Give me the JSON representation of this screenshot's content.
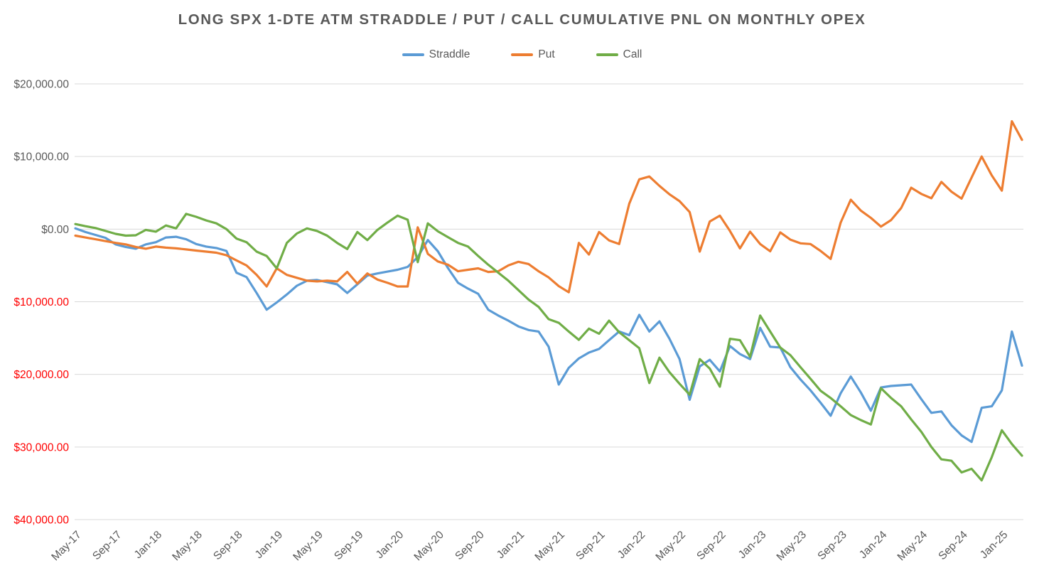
{
  "title": "LONG SPX 1-DTE ATM STRADDLE / PUT / CALL CUMULATIVE PNL ON MONTHLY OPEX",
  "colors": {
    "straddle": "#5B9BD5",
    "put": "#ED7D31",
    "call": "#70AD47",
    "grid": "#D9D9D9",
    "axis_text": "#595959",
    "negative_text": "#FF0000",
    "title_text": "#595959"
  },
  "chart_data": {
    "type": "line",
    "title": "LONG SPX 1-DTE ATM STRADDLE / PUT / CALL CUMULATIVE PNL ON MONTHLY OPEX",
    "legend_position": "top",
    "grid": true,
    "ylim": [
      -40000,
      20000
    ],
    "y_ticks": [
      {
        "value": 20000,
        "label": "$20,000.00",
        "negative": false
      },
      {
        "value": 10000,
        "label": "$10,000.00",
        "negative": false
      },
      {
        "value": 0,
        "label": "$0.00",
        "negative": false
      },
      {
        "value": -10000,
        "label": "$10,000.00",
        "negative": true
      },
      {
        "value": -20000,
        "label": "$20,000.00",
        "negative": true
      },
      {
        "value": -30000,
        "label": "$30,000.00",
        "negative": true
      },
      {
        "value": -40000,
        "label": "$40,000.00",
        "negative": true
      }
    ],
    "x_tick_labels": [
      "May-17",
      "Sep-17",
      "Jan-18",
      "May-18",
      "Sep-18",
      "Jan-19",
      "May-19",
      "Sep-19",
      "Jan-20",
      "May-20",
      "Sep-20",
      "Jan-21",
      "May-21",
      "Sep-21",
      "Jan-22",
      "May-22",
      "Sep-22",
      "Jan-23",
      "May-23",
      "Sep-23",
      "Jan-24",
      "May-24",
      "Sep-24",
      "Jan-25"
    ],
    "x_tick_every": 4,
    "x": [
      "May-17",
      "Jun-17",
      "Jul-17",
      "Aug-17",
      "Sep-17",
      "Oct-17",
      "Nov-17",
      "Dec-17",
      "Jan-18",
      "Feb-18",
      "Mar-18",
      "Apr-18",
      "May-18",
      "Jun-18",
      "Jul-18",
      "Aug-18",
      "Sep-18",
      "Oct-18",
      "Nov-18",
      "Dec-18",
      "Jan-19",
      "Feb-19",
      "Mar-19",
      "Apr-19",
      "May-19",
      "Jun-19",
      "Jul-19",
      "Aug-19",
      "Sep-19",
      "Oct-19",
      "Nov-19",
      "Dec-19",
      "Jan-20",
      "Feb-20",
      "Mar-20",
      "Apr-20",
      "May-20",
      "Jun-20",
      "Jul-20",
      "Aug-20",
      "Sep-20",
      "Oct-20",
      "Nov-20",
      "Dec-20",
      "Jan-21",
      "Feb-21",
      "Mar-21",
      "Apr-21",
      "May-21",
      "Jun-21",
      "Jul-21",
      "Aug-21",
      "Sep-21",
      "Oct-21",
      "Nov-21",
      "Dec-21",
      "Jan-22",
      "Feb-22",
      "Mar-22",
      "Apr-22",
      "May-22",
      "Jun-22",
      "Jul-22",
      "Aug-22",
      "Sep-22",
      "Oct-22",
      "Nov-22",
      "Dec-22",
      "Jan-23",
      "Feb-23",
      "Mar-23",
      "Apr-23",
      "May-23",
      "Jun-23",
      "Jul-23",
      "Aug-23",
      "Sep-23",
      "Oct-23",
      "Nov-23",
      "Dec-23",
      "Jan-24",
      "Feb-24",
      "Mar-24",
      "Apr-24",
      "May-24",
      "Jun-24",
      "Jul-24",
      "Aug-24",
      "Sep-24",
      "Oct-24",
      "Nov-24",
      "Dec-24",
      "Jan-25",
      "Feb-25",
      "Mar-25"
    ],
    "series": [
      {
        "name": "Straddle",
        "color": "#5B9BD5",
        "values": [
          100,
          -400,
          -800,
          -1200,
          -2100,
          -2450,
          -2700,
          -2100,
          -1800,
          -1150,
          -1050,
          -1400,
          -2050,
          -2400,
          -2600,
          -3000,
          -6000,
          -6600,
          -8800,
          -11100,
          -10100,
          -9000,
          -7800,
          -7100,
          -7000,
          -7300,
          -7600,
          -8800,
          -7600,
          -6400,
          -6100,
          -5850,
          -5600,
          -5200,
          -3850,
          -1500,
          -3050,
          -5350,
          -7400,
          -8200,
          -8900,
          -11100,
          -11900,
          -12600,
          -13400,
          -13900,
          -14100,
          -16200,
          -21400,
          -19100,
          -17800,
          -17000,
          -16500,
          -15300,
          -14100,
          -14600,
          -11800,
          -14100,
          -12700,
          -15100,
          -17900,
          -23500,
          -18900,
          -18000,
          -19600,
          -16100,
          -17200,
          -17900,
          -13600,
          -16200,
          -16300,
          -19000,
          -20700,
          -22200,
          -23900,
          -25700,
          -22600,
          -20300,
          -22500,
          -25000,
          -21800,
          -21600,
          -21500,
          -21400,
          -23400,
          -25300,
          -25100,
          -27000,
          -28400,
          -29300,
          -24600,
          -24400,
          -22200,
          -14100,
          -18800
        ]
      },
      {
        "name": "Put",
        "color": "#ED7D31",
        "values": [
          -900,
          -1150,
          -1400,
          -1650,
          -1900,
          -2100,
          -2450,
          -2700,
          -2400,
          -2550,
          -2650,
          -2800,
          -2950,
          -3100,
          -3250,
          -3600,
          -4300,
          -5000,
          -6300,
          -7900,
          -5400,
          -6300,
          -6700,
          -7100,
          -7200,
          -7100,
          -7200,
          -5900,
          -7500,
          -6100,
          -6950,
          -7400,
          -7900,
          -7900,
          250,
          -3400,
          -4450,
          -4900,
          -5800,
          -5600,
          -5400,
          -5900,
          -5800,
          -5000,
          -4500,
          -4800,
          -5800,
          -6650,
          -7850,
          -8700,
          -1900,
          -3500,
          -400,
          -1550,
          -2050,
          3500,
          6850,
          7250,
          5950,
          4800,
          3850,
          2350,
          -3100,
          1050,
          1850,
          -250,
          -2650,
          -350,
          -2050,
          -3050,
          -450,
          -1450,
          -1950,
          -2050,
          -3000,
          -4100,
          900,
          4050,
          2550,
          1550,
          350,
          1250,
          2900,
          5700,
          4850,
          4250,
          6500,
          5150,
          4200,
          7100,
          10000,
          7400,
          5300,
          14850,
          12300
        ]
      },
      {
        "name": "Call",
        "color": "#70AD47",
        "values": [
          700,
          400,
          150,
          -250,
          -650,
          -900,
          -850,
          -100,
          -350,
          500,
          100,
          2100,
          1700,
          1200,
          800,
          0,
          -1300,
          -1800,
          -3100,
          -3700,
          -5400,
          -1900,
          -600,
          100,
          -250,
          -900,
          -1900,
          -2750,
          -400,
          -1500,
          -100,
          900,
          1850,
          1300,
          -4550,
          800,
          -300,
          -1100,
          -1900,
          -2400,
          -3700,
          -4900,
          -6000,
          -7100,
          -8400,
          -9700,
          -10700,
          -12400,
          -12900,
          -14100,
          -15250,
          -13700,
          -14400,
          -12600,
          -14200,
          -15300,
          -16400,
          -21200,
          -17700,
          -19700,
          -21300,
          -22800,
          -17900,
          -19200,
          -21700,
          -15100,
          -15300,
          -17600,
          -11900,
          -14100,
          -16300,
          -17350,
          -19000,
          -20600,
          -22250,
          -23250,
          -24400,
          -25600,
          -26300,
          -26900,
          -21900,
          -23250,
          -24400,
          -26200,
          -27900,
          -30000,
          -31700,
          -31900,
          -33500,
          -33000,
          -34600,
          -31400,
          -27700,
          -29600,
          -31200
        ]
      }
    ]
  }
}
